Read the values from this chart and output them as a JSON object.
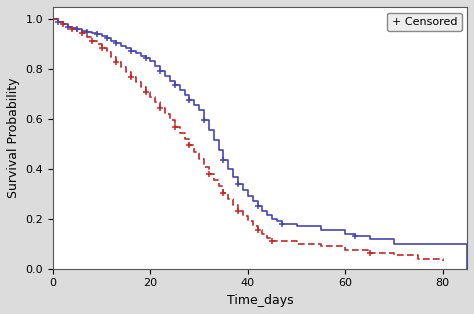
{
  "title": "",
  "xlabel": "Time_days",
  "ylabel": "Survival Probability",
  "xlim": [
    0,
    85
  ],
  "ylim": [
    0.0,
    1.05
  ],
  "xticks": [
    0,
    20,
    40,
    60,
    80
  ],
  "yticks": [
    0.0,
    0.2,
    0.4,
    0.6,
    0.8,
    1.0
  ],
  "bg_color": "#dcdcdc",
  "plot_bg_color": "#ffffff",
  "blue_color": "#4444bb",
  "red_color": "#cc2222",
  "blue_times": [
    0,
    1,
    2,
    3,
    4,
    5,
    6,
    7,
    8,
    9,
    10,
    11,
    12,
    13,
    14,
    15,
    16,
    17,
    18,
    19,
    20,
    21,
    22,
    23,
    24,
    25,
    26,
    27,
    28,
    29,
    30,
    31,
    32,
    33,
    34,
    35,
    36,
    37,
    38,
    39,
    40,
    41,
    42,
    43,
    44,
    45,
    46,
    47,
    50,
    55,
    60,
    62,
    65,
    70,
    75,
    85
  ],
  "blue_surv": [
    1.0,
    0.99,
    0.98,
    0.97,
    0.965,
    0.96,
    0.955,
    0.95,
    0.945,
    0.94,
    0.935,
    0.925,
    0.915,
    0.905,
    0.895,
    0.885,
    0.875,
    0.865,
    0.855,
    0.845,
    0.835,
    0.815,
    0.795,
    0.775,
    0.755,
    0.735,
    0.715,
    0.695,
    0.675,
    0.655,
    0.635,
    0.595,
    0.555,
    0.515,
    0.475,
    0.435,
    0.4,
    0.37,
    0.34,
    0.315,
    0.29,
    0.27,
    0.25,
    0.23,
    0.215,
    0.2,
    0.19,
    0.18,
    0.17,
    0.155,
    0.14,
    0.13,
    0.12,
    0.1,
    0.1,
    0.0
  ],
  "blue_censored_times": [
    1,
    3,
    5,
    7,
    9,
    11,
    13,
    16,
    19,
    22,
    25,
    28,
    31,
    35,
    38,
    42,
    47,
    62
  ],
  "blue_censored_surv": [
    0.99,
    0.97,
    0.96,
    0.95,
    0.94,
    0.925,
    0.905,
    0.875,
    0.845,
    0.795,
    0.735,
    0.675,
    0.595,
    0.435,
    0.34,
    0.25,
    0.18,
    0.13
  ],
  "red_times": [
    0,
    1,
    2,
    3,
    4,
    5,
    6,
    7,
    8,
    9,
    10,
    11,
    12,
    13,
    14,
    15,
    16,
    17,
    18,
    19,
    20,
    21,
    22,
    23,
    24,
    25,
    26,
    27,
    28,
    29,
    30,
    31,
    32,
    33,
    34,
    35,
    36,
    37,
    38,
    39,
    40,
    41,
    42,
    43,
    44,
    45,
    50,
    55,
    60,
    65,
    70,
    75,
    80
  ],
  "red_surv": [
    1.0,
    0.99,
    0.98,
    0.97,
    0.96,
    0.955,
    0.945,
    0.93,
    0.915,
    0.9,
    0.885,
    0.87,
    0.85,
    0.83,
    0.81,
    0.79,
    0.77,
    0.75,
    0.73,
    0.71,
    0.69,
    0.67,
    0.645,
    0.62,
    0.595,
    0.57,
    0.545,
    0.52,
    0.495,
    0.47,
    0.44,
    0.41,
    0.38,
    0.355,
    0.33,
    0.305,
    0.28,
    0.255,
    0.23,
    0.21,
    0.19,
    0.17,
    0.155,
    0.14,
    0.125,
    0.11,
    0.1,
    0.09,
    0.075,
    0.065,
    0.055,
    0.04,
    0.03
  ],
  "red_censored_times": [
    2,
    4,
    6,
    8,
    10,
    13,
    16,
    19,
    22,
    25,
    28,
    32,
    35,
    38,
    42,
    45,
    65
  ],
  "red_censored_surv": [
    0.98,
    0.96,
    0.945,
    0.915,
    0.885,
    0.83,
    0.77,
    0.71,
    0.645,
    0.57,
    0.495,
    0.38,
    0.305,
    0.23,
    0.155,
    0.11,
    0.065
  ],
  "legend_text": "+ Censored",
  "legend_fontsize": 8,
  "axis_fontsize": 9,
  "tick_fontsize": 8
}
